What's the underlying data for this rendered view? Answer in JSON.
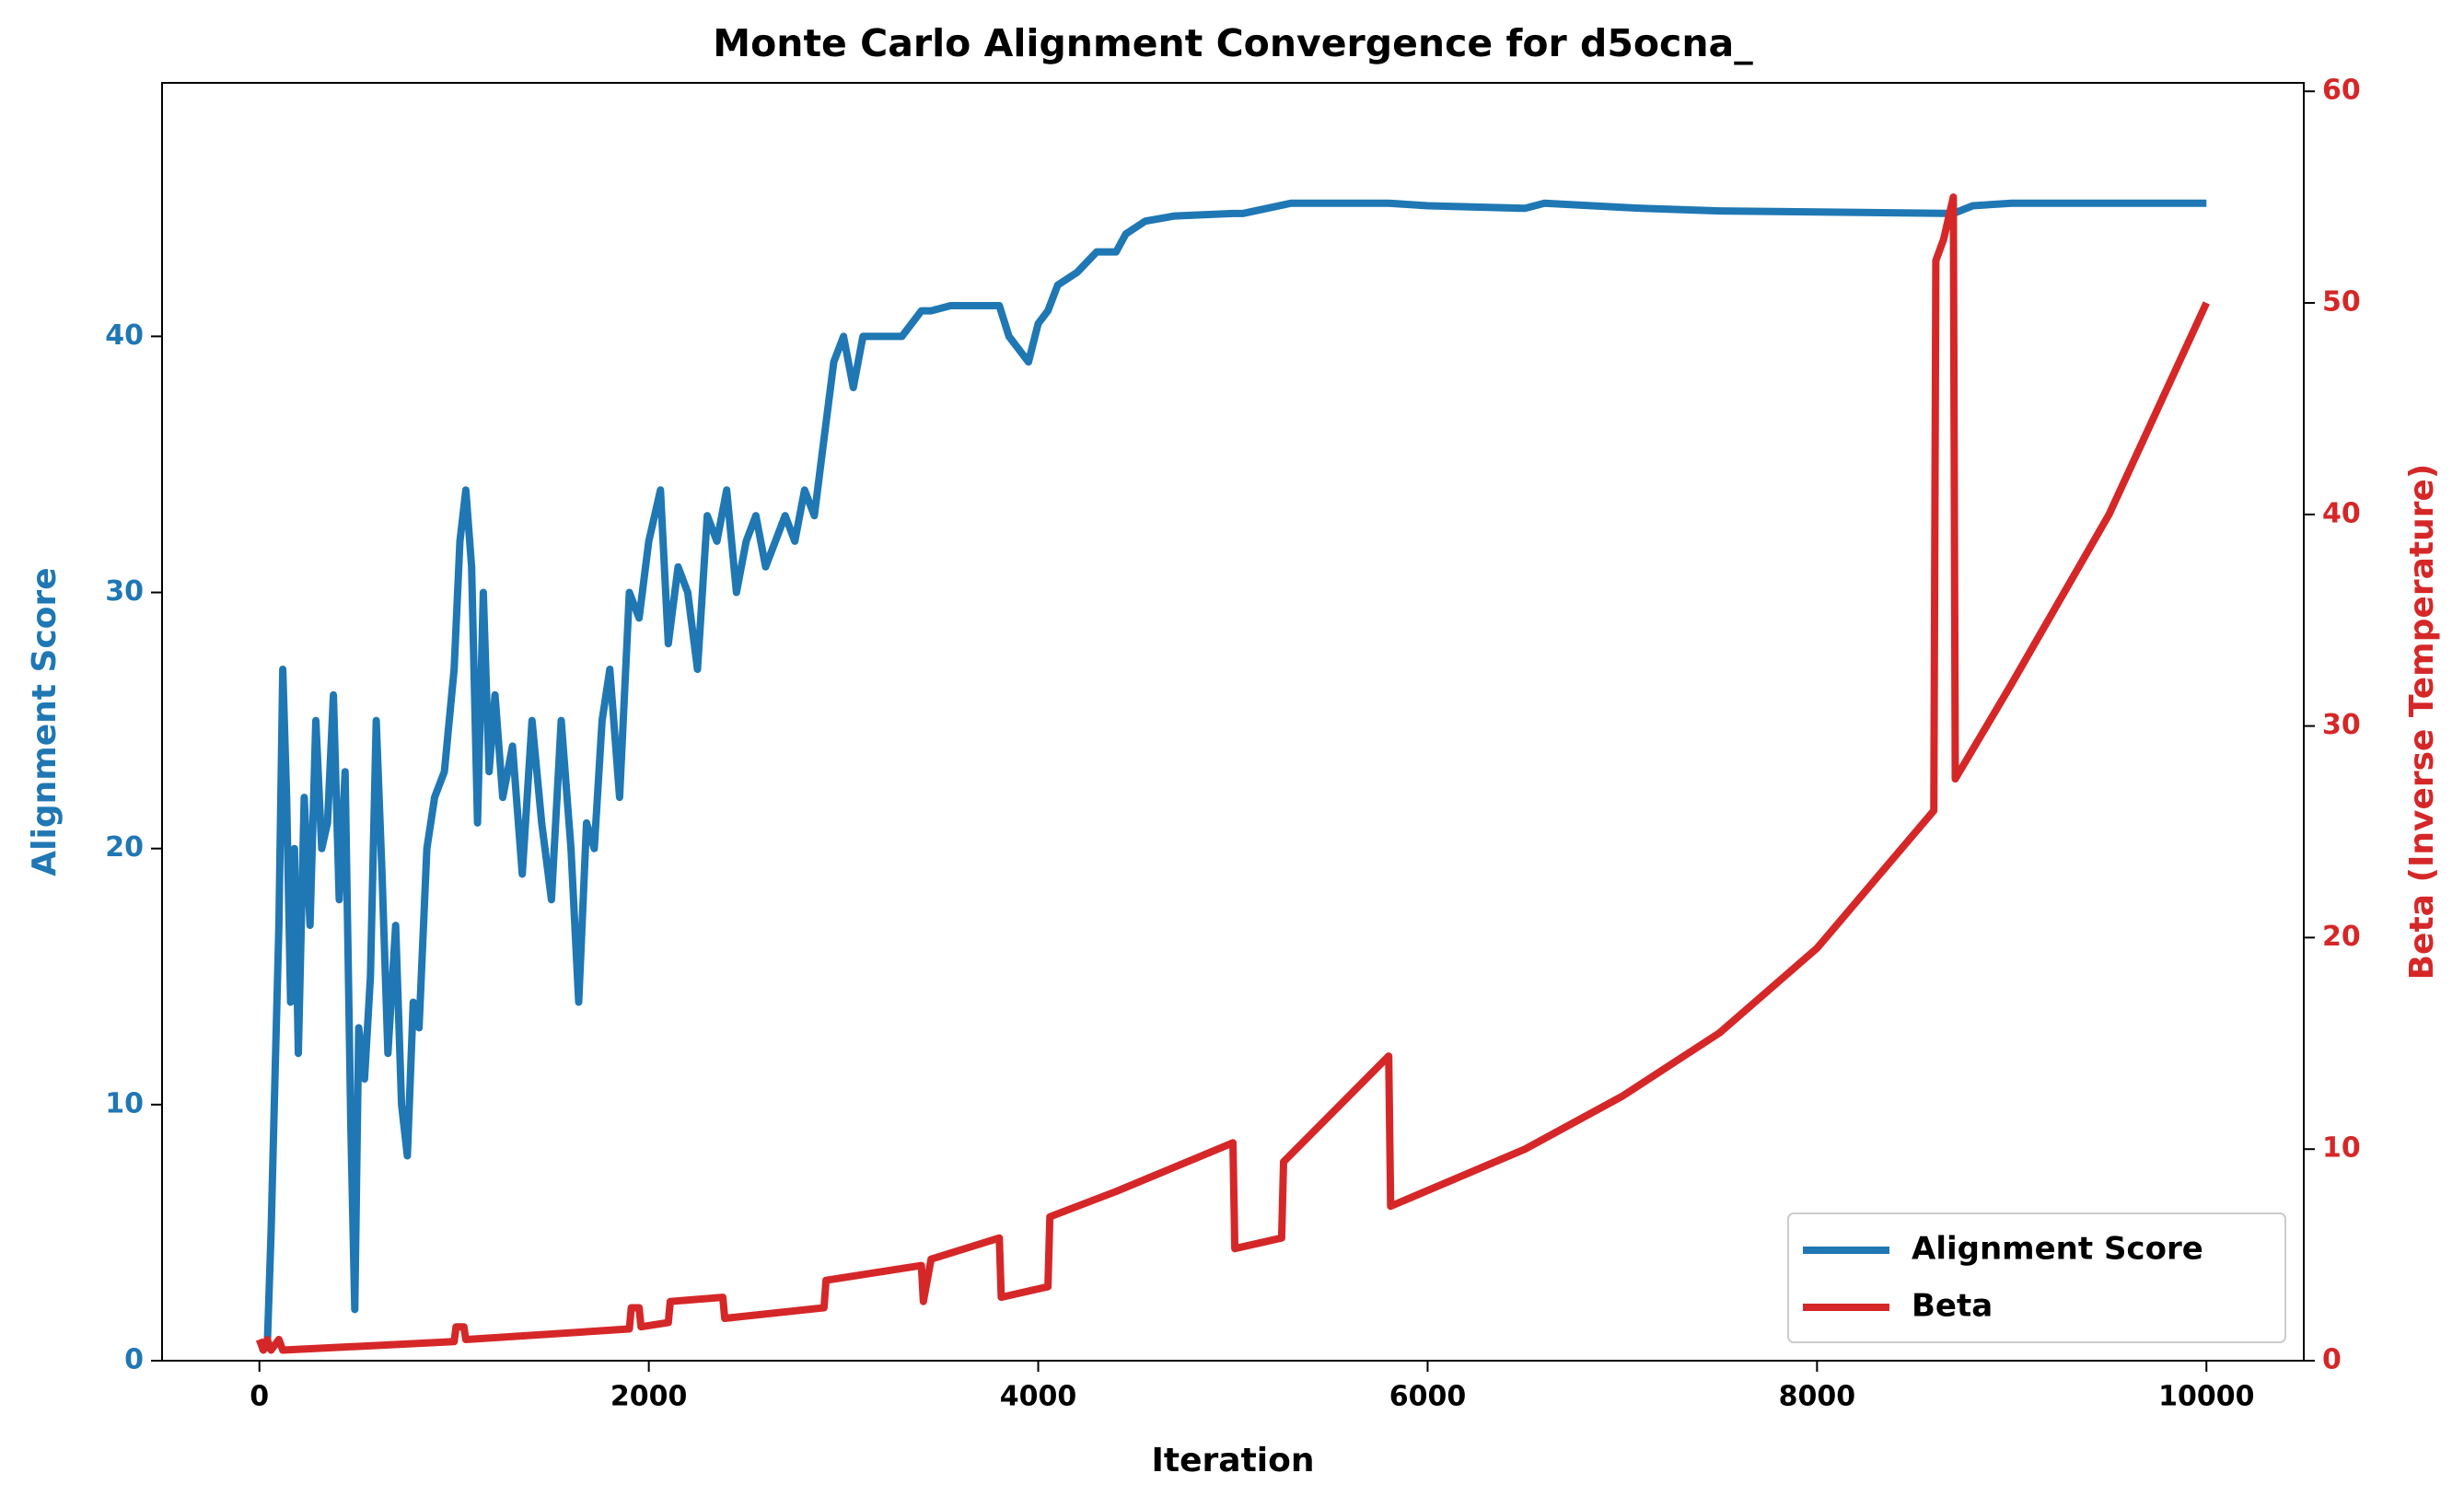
{
  "chart_data": {
    "type": "line",
    "title": "Monte Carlo Alignment Convergence for d5ocna_",
    "xlabel": "Iteration",
    "ylabel": "Alignment Score",
    "y2label": "Beta (Inverse Temperature)",
    "xlim": [
      -500,
      10500
    ],
    "xticks": [
      0,
      2000,
      4000,
      6000,
      8000,
      10000
    ],
    "ylim": [
      0,
      49.9
    ],
    "yticks": [
      0,
      10,
      20,
      30,
      40
    ],
    "y2lim": [
      0,
      60.4
    ],
    "y2ticks": [
      0,
      10,
      20,
      30,
      40,
      50,
      60
    ],
    "legend": "lower right",
    "series": [
      {
        "name": "Alignment Score",
        "color": "#1f77b4",
        "axis": "y",
        "x": [
          0,
          40,
          60,
          80,
          100,
          120,
          140,
          160,
          180,
          200,
          230,
          260,
          290,
          320,
          350,
          380,
          410,
          440,
          470,
          490,
          510,
          540,
          570,
          600,
          630,
          660,
          700,
          730,
          760,
          790,
          820,
          860,
          900,
          950,
          1000,
          1030,
          1060,
          1090,
          1120,
          1150,
          1180,
          1210,
          1250,
          1300,
          1350,
          1400,
          1450,
          1500,
          1550,
          1600,
          1640,
          1680,
          1720,
          1760,
          1800,
          1850,
          1900,
          1950,
          2000,
          2060,
          2100,
          2150,
          2200,
          2250,
          2300,
          2350,
          2400,
          2450,
          2500,
          2550,
          2600,
          2650,
          2700,
          2750,
          2800,
          2850,
          2900,
          2950,
          3000,
          3050,
          3100,
          3300,
          3400,
          3450,
          3550,
          3800,
          3850,
          3950,
          4000,
          4050,
          4100,
          4200,
          4300,
          4400,
          4450,
          4550,
          4700,
          5000,
          5050,
          5300,
          5800,
          6000,
          6500,
          6600,
          7100,
          7500,
          8700,
          8800,
          9000,
          10000
        ],
        "values": [
          0.5,
          0.5,
          5,
          11,
          17,
          27,
          22,
          14,
          20,
          12,
          22,
          17,
          25,
          20,
          21,
          26,
          18,
          23,
          9,
          2,
          13,
          11,
          15,
          25,
          19,
          12,
          17,
          10,
          8,
          14,
          13,
          20,
          22,
          23,
          27,
          32,
          34,
          31,
          21,
          30,
          23,
          26,
          22,
          24,
          19,
          25,
          21,
          18,
          25,
          20,
          14,
          21,
          20,
          25,
          27,
          22,
          30,
          29,
          32,
          34,
          28,
          31,
          30,
          27,
          33,
          32,
          34,
          30,
          32,
          33,
          31,
          32,
          33,
          32,
          34,
          33,
          36,
          39,
          40,
          38,
          40,
          40,
          41,
          41,
          41.2,
          41.2,
          40,
          39,
          40.5,
          41,
          42,
          42.5,
          43.3,
          43.3,
          44,
          44.5,
          44.7,
          44.8,
          44.8,
          45.2,
          45.2,
          45.1,
          45,
          45.2,
          45,
          44.9,
          44.8,
          45.1,
          45.2,
          45.2
        ]
      },
      {
        "name": "Beta",
        "color": "#d62728",
        "axis": "y2",
        "x": [
          0,
          20,
          40,
          60,
          100,
          120,
          1000,
          1010,
          1050,
          1060,
          1900,
          1910,
          1950,
          1960,
          2100,
          2110,
          2380,
          2390,
          2900,
          2910,
          3400,
          3410,
          3450,
          3800,
          3810,
          4050,
          4060,
          4400,
          5000,
          5010,
          5250,
          5260,
          5800,
          5810,
          6500,
          7000,
          7500,
          8000,
          8600,
          8610,
          8650,
          8700,
          8710,
          9000,
          9500,
          10000
        ],
        "values": [
          1,
          0.5,
          1,
          0.5,
          1,
          0.5,
          0.9,
          1.6,
          1.6,
          1,
          1.5,
          2.5,
          2.5,
          1.6,
          1.8,
          2.8,
          3,
          2,
          2.5,
          3.8,
          4.5,
          2.8,
          4.8,
          5.8,
          3,
          3.5,
          6.8,
          8,
          10.3,
          5.3,
          5.8,
          9.4,
          14.4,
          7.3,
          10,
          12.5,
          15.5,
          19.5,
          26,
          52,
          53,
          55,
          27.5,
          32,
          40,
          50
        ]
      }
    ]
  }
}
